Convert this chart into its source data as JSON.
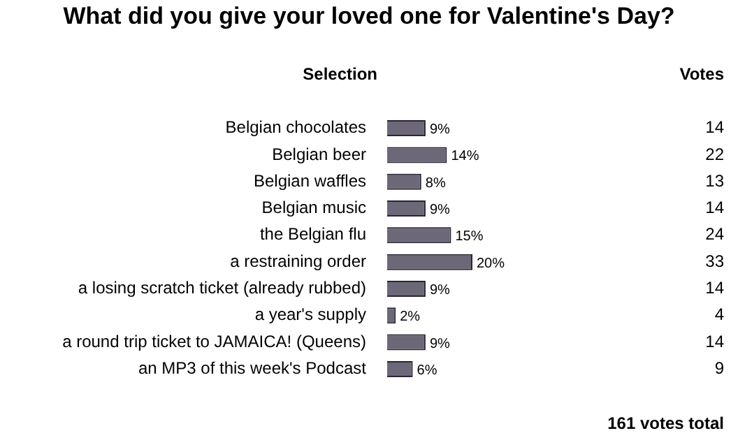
{
  "chart_data": {
    "type": "bar",
    "orientation": "horizontal",
    "title": "What did you give your loved one for Valentine's Day?",
    "ylabel": "Selection",
    "categories": [
      "Belgian chocolates",
      "Belgian beer",
      "Belgian waffles",
      "Belgian music",
      "the Belgian flu",
      "a restraining order",
      "a losing scratch ticket (already rubbed)",
      "a year's supply",
      "a round trip ticket to JAMAICA! (Queens)",
      "an MP3 of this week's Podcast"
    ],
    "values": [
      9,
      14,
      8,
      9,
      15,
      20,
      9,
      2,
      9,
      6
    ],
    "value_labels": [
      "9%",
      "14%",
      "8%",
      "9%",
      "15%",
      "20%",
      "9%",
      "2%",
      "9%",
      "6%"
    ],
    "color": "#6c6878",
    "tick_labels": "y",
    "grid": false,
    "annotations": [
      "Votes",
      "161 votes total",
      "14",
      "22",
      "13",
      "14",
      "24",
      "33",
      "14",
      "4",
      "14",
      "9"
    ]
  }
}
